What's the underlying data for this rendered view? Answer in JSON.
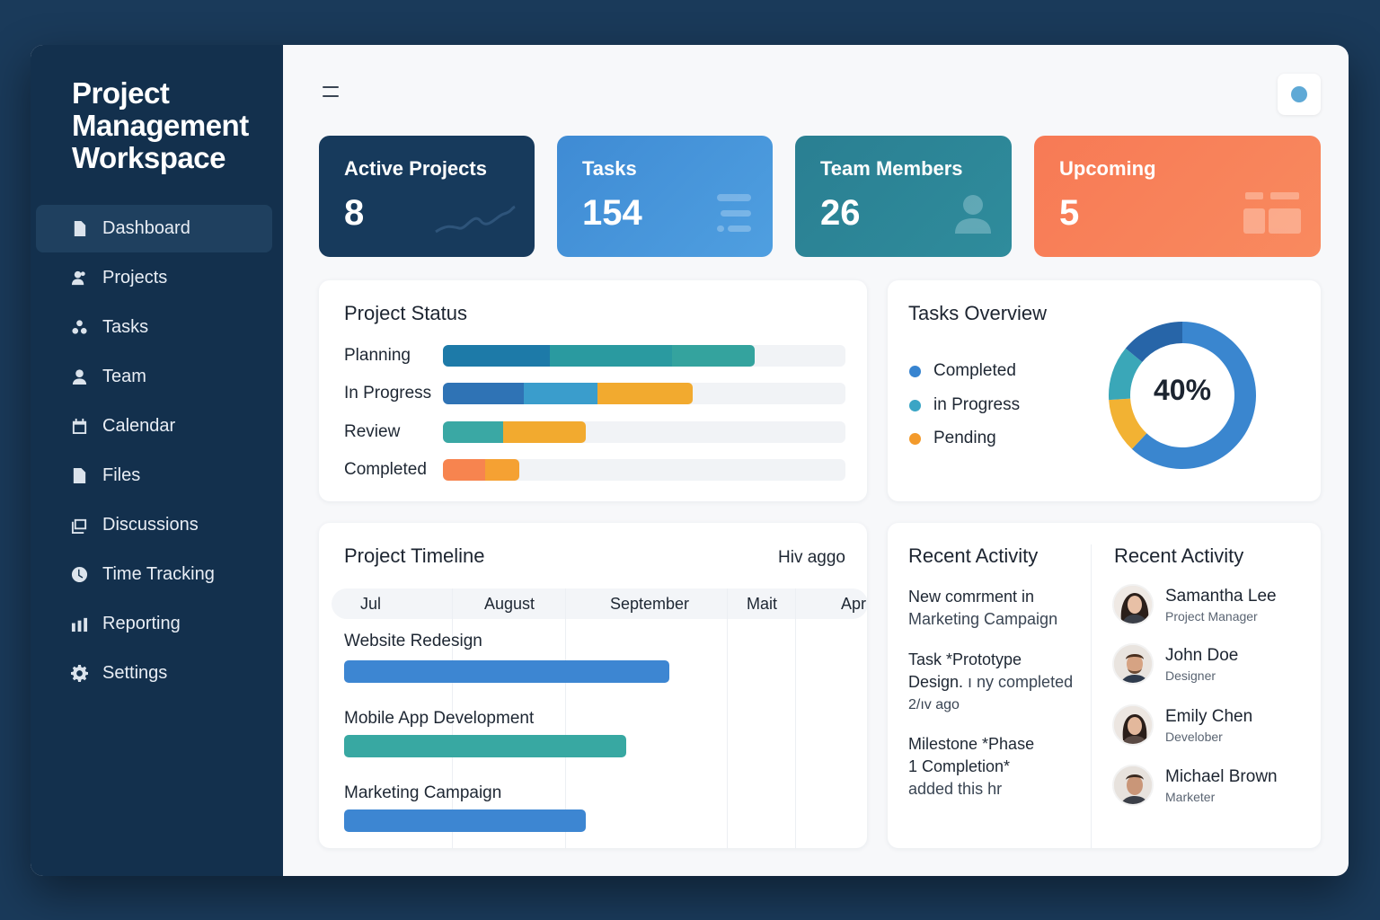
{
  "sidebar": {
    "brand": "Project Management Workspace",
    "items": [
      {
        "label": "Dashboard",
        "icon": "document-icon",
        "active": true
      },
      {
        "label": "Projects",
        "icon": "user-group-icon"
      },
      {
        "label": "Tasks",
        "icon": "tasks-icon"
      },
      {
        "label": "Team",
        "icon": "user-icon"
      },
      {
        "label": "Calendar",
        "icon": "calendar-icon"
      },
      {
        "label": "Files",
        "icon": "file-icon"
      },
      {
        "label": "Discussions",
        "icon": "discussion-icon"
      },
      {
        "label": "Time Tracking",
        "icon": "clock-icon"
      },
      {
        "label": "Reporting",
        "icon": "bar-chart-icon"
      },
      {
        "label": "Settings",
        "icon": "gear-icon"
      }
    ]
  },
  "stats": [
    {
      "title": "Active Projects",
      "value": "8",
      "color": "#173a5c"
    },
    {
      "title": "Tasks",
      "value": "154",
      "color": "#4391d8"
    },
    {
      "title": "Team Members",
      "value": "26",
      "color": "#2a8294"
    },
    {
      "title": "Upcoming",
      "value": "5",
      "color": "#f77f5b"
    }
  ],
  "project_status": {
    "title": "Project Status",
    "rows": [
      {
        "label": "Planning",
        "segments": [
          {
            "pct": 26.5,
            "color": "#1d7aa8"
          },
          {
            "pct": 30.5,
            "color": "#2a9aa0"
          },
          {
            "pct": 20.5,
            "color": "#34a39e"
          }
        ]
      },
      {
        "label": "In Progress",
        "segments": [
          {
            "pct": 20,
            "color": "#2f73b5"
          },
          {
            "pct": 18.5,
            "color": "#3a9dcc"
          },
          {
            "pct": 23.5,
            "color": "#f2aa2f"
          }
        ]
      },
      {
        "label": "Review",
        "segments": [
          {
            "pct": 15,
            "color": "#3aa8a4"
          },
          {
            "pct": 20.5,
            "color": "#f2aa2f"
          }
        ]
      },
      {
        "label": "Completed",
        "segments": [
          {
            "pct": 10.5,
            "color": "#f7844f"
          },
          {
            "pct": 8.5,
            "color": "#f5a133"
          }
        ]
      }
    ]
  },
  "tasks_overview": {
    "title": "Tasks Overview",
    "center_label": "40%",
    "legend": [
      {
        "label": "Completed",
        "color": "#3784d0"
      },
      {
        "label": "in Progress",
        "color": "#3aa5c5"
      },
      {
        "label": "Pending",
        "color": "#f39a2b"
      }
    ],
    "donut": [
      {
        "share": 62,
        "color": "#3a86cf"
      },
      {
        "share": 12,
        "color": "#f2b233"
      },
      {
        "share": 12,
        "color": "#3aa7b8"
      },
      {
        "share": 14,
        "color": "#2765a8"
      }
    ]
  },
  "timeline": {
    "title": "Project Timeline",
    "range_label": "Hiv aggo",
    "months": [
      "Jul",
      "August",
      "September",
      "Mait",
      "Apr"
    ],
    "tasks": [
      {
        "label": "Website Redesign",
        "color": "#3d86d2"
      },
      {
        "label": "Mobile App Development",
        "color": "#38a8a2"
      },
      {
        "label": "Marketing Campaign",
        "color": "#3d86d2"
      }
    ]
  },
  "activity": {
    "title": "Recent Activity",
    "items": [
      {
        "line1": "New comrment in",
        "line2": "Marketing Campaign"
      },
      {
        "line1": "Task *Prototype",
        "line2": "Design.",
        "line2b": " ı ny completed",
        "line3": "2/ıv ago"
      },
      {
        "line1": "Milestone *Phase",
        "line2": "1 Completion*",
        "line3": "added this hr"
      }
    ]
  },
  "people": {
    "title": "Recent Activity",
    "items": [
      {
        "name": "Samantha Lee",
        "role": "Project Manager"
      },
      {
        "name": "John Doe",
        "role": "Designer"
      },
      {
        "name": "Emily Chen",
        "role": "Develober"
      },
      {
        "name": "Michael Brown",
        "role": "Marketer"
      }
    ]
  }
}
